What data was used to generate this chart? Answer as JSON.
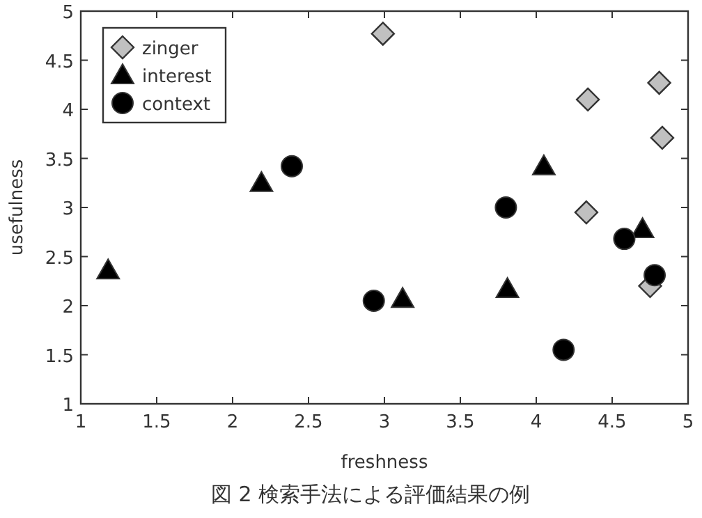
{
  "chart_data": {
    "type": "scatter",
    "xlabel": "freshness",
    "ylabel": "usefulness",
    "xlim": [
      1,
      5
    ],
    "ylim": [
      1,
      5
    ],
    "xticks": [
      1,
      1.5,
      2,
      2.5,
      3,
      3.5,
      4,
      4.5,
      5
    ],
    "yticks": [
      1,
      1.5,
      2,
      2.5,
      3,
      3.5,
      4,
      4.5,
      5
    ],
    "grid": false,
    "legend": "top left",
    "annotations": [
      "図 2 検索手法による評価結果の例"
    ],
    "series": [
      {
        "name": "zinger",
        "color": "#c0c0c0",
        "marker": "diamond",
        "x": [
          2.99,
          4.34,
          4.81,
          4.83,
          4.33,
          4.75
        ],
        "values": [
          4.77,
          4.1,
          4.27,
          3.71,
          2.95,
          2.2
        ]
      },
      {
        "name": "interest",
        "color": "#000000",
        "marker": "triangle",
        "x": [
          1.18,
          2.19,
          3.12,
          3.81,
          4.05,
          4.7
        ],
        "values": [
          2.36,
          3.25,
          2.07,
          2.17,
          3.42,
          2.78
        ]
      },
      {
        "name": "context",
        "color": "#000000",
        "marker": "circle",
        "x": [
          2.93,
          2.39,
          3.8,
          4.18,
          4.58,
          4.78
        ],
        "values": [
          2.05,
          3.42,
          3.0,
          1.55,
          2.68,
          2.31
        ]
      }
    ]
  }
}
